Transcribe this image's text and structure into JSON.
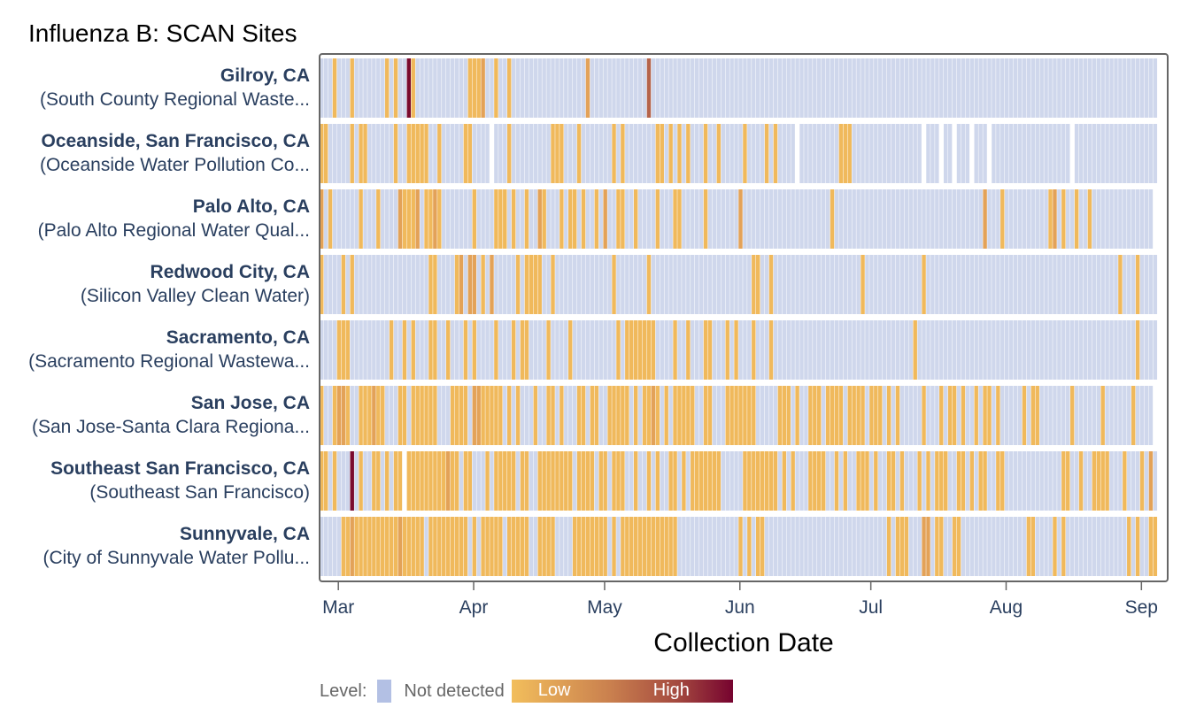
{
  "title": "Influenza B: SCAN Sites",
  "chart_data": {
    "type": "heatmap",
    "title": "Influenza B: SCAN Sites",
    "xlabel": "Collection Date",
    "x_start_date": "2024-02-26",
    "num_days": 192,
    "x_ticks": [
      {
        "label": "Mar",
        "day": 4
      },
      {
        "label": "Apr",
        "day": 35
      },
      {
        "label": "May",
        "day": 65
      },
      {
        "label": "Jun",
        "day": 96
      },
      {
        "label": "Jul",
        "day": 126
      },
      {
        "label": "Aug",
        "day": 157
      },
      {
        "label": "Sep",
        "day": 188
      }
    ],
    "levels": {
      "0": "Not detected",
      "1": "Low",
      "4": "High"
    },
    "colors": {
      "0": "#cfd7ec",
      "1": "#f0b95c",
      "2": "#e3a258",
      "3": "#b5634a",
      "4": "#7a0b2e"
    },
    "legend": {
      "prefix": "Level:",
      "not_detected": "Not detected",
      "low": "Low",
      "high": "High"
    },
    "sites": [
      {
        "name": "Gilroy, CA",
        "facility": "(South County Regional Waste...",
        "last_day": 191,
        "missing": [],
        "low": [
          3,
          7,
          15,
          17,
          21,
          34,
          35,
          36,
          40,
          43
        ],
        "mid": [
          37,
          61
        ],
        "midhigh": [
          75
        ],
        "high": [
          20
        ]
      },
      {
        "name": "Oceanside, San Francisco, CA",
        "facility": "(Oceanside Water Pollution Co...",
        "last_day": 191,
        "missing": [
          39,
          109,
          138,
          142,
          145,
          149,
          153,
          172
        ],
        "low": [
          0,
          1,
          7,
          9,
          10,
          17,
          20,
          21,
          22,
          23,
          24,
          27,
          33,
          34,
          43,
          53,
          54,
          55,
          59,
          67,
          69,
          77,
          78,
          80,
          82,
          84,
          88,
          91,
          97,
          102,
          104,
          119,
          120,
          121
        ],
        "mid": [],
        "midhigh": [],
        "high": []
      },
      {
        "name": "Palo Alto, CA",
        "facility": "(Palo Alto Regional Water Qual...",
        "last_day": 190,
        "missing": [],
        "low": [
          2,
          9,
          13,
          19,
          20,
          21,
          24,
          25,
          27,
          35,
          40,
          41,
          42,
          44,
          47,
          51,
          55,
          57,
          58,
          60,
          63,
          68,
          69,
          72,
          77,
          81,
          82,
          88,
          117,
          156,
          167,
          170,
          173,
          176
        ],
        "mid": [
          0,
          18,
          22,
          26,
          50,
          65,
          96,
          152,
          168
        ],
        "midhigh": [],
        "high": []
      },
      {
        "name": "Redwood City, CA",
        "facility": "(Silicon Valley Clean Water)",
        "last_day": 191,
        "missing": [],
        "low": [
          0,
          5,
          7,
          25,
          26,
          31,
          37,
          45,
          47,
          48,
          49,
          50,
          53,
          67,
          75,
          99,
          100,
          103,
          124,
          138,
          183,
          187
        ],
        "mid": [
          32,
          34,
          35,
          39
        ],
        "midhigh": [],
        "high": []
      },
      {
        "name": "Sacramento, CA",
        "facility": "(Sacramento Regional Wastewa...",
        "last_day": 191,
        "missing": [],
        "low": [
          4,
          5,
          6,
          16,
          19,
          21,
          25,
          26,
          29,
          33,
          35,
          40,
          44,
          46,
          47,
          52,
          57,
          68,
          70,
          71,
          72,
          73,
          74,
          75,
          76,
          81,
          84,
          88,
          89,
          93,
          95,
          99,
          103,
          136,
          187
        ],
        "mid": [],
        "midhigh": [],
        "high": []
      },
      {
        "name": "San Jose, CA",
        "facility": "(San Jose-Santa Clara Regiona...",
        "last_day": 190,
        "missing": [],
        "low": [
          0,
          3,
          6,
          9,
          10,
          11,
          13,
          14,
          18,
          19,
          21,
          22,
          23,
          24,
          25,
          26,
          30,
          31,
          32,
          33,
          37,
          38,
          39,
          40,
          41,
          43,
          45,
          49,
          52,
          53,
          55,
          59,
          60,
          62,
          63,
          66,
          67,
          68,
          69,
          70,
          72,
          74,
          75,
          77,
          79,
          81,
          82,
          83,
          84,
          85,
          88,
          89,
          93,
          94,
          95,
          96,
          97,
          98,
          99,
          105,
          106,
          107,
          109,
          112,
          113,
          114,
          116,
          117,
          118,
          119,
          121,
          122,
          123,
          124,
          126,
          127,
          128,
          130,
          132,
          138,
          142,
          144,
          145,
          147,
          150,
          152,
          153,
          155,
          161,
          163,
          164,
          172,
          179,
          186
        ],
        "mid": [
          4,
          5,
          12,
          35,
          36,
          76
        ],
        "midhigh": [],
        "high": []
      },
      {
        "name": "Southeast San Francisco, CA",
        "facility": "(Southeast San Francisco)",
        "last_day": 191,
        "missing": [
          19
        ],
        "low": [
          0,
          1,
          3,
          9,
          12,
          13,
          15,
          17,
          18,
          20,
          21,
          22,
          23,
          24,
          25,
          26,
          27,
          28,
          30,
          31,
          33,
          34,
          38,
          40,
          41,
          42,
          43,
          44,
          46,
          47,
          50,
          51,
          52,
          53,
          54,
          55,
          56,
          57,
          59,
          60,
          61,
          62,
          64,
          65,
          67,
          68,
          69,
          72,
          75,
          77,
          80,
          81,
          83,
          85,
          86,
          87,
          88,
          89,
          90,
          91,
          97,
          98,
          99,
          100,
          101,
          102,
          103,
          104,
          106,
          108,
          112,
          113,
          114,
          115,
          118,
          120,
          123,
          124,
          125,
          127,
          130,
          131,
          133,
          137,
          139,
          141,
          142,
          143,
          146,
          147,
          149,
          151,
          152,
          155,
          156,
          170,
          171,
          174,
          177,
          178,
          179,
          180,
          184,
          188
        ],
        "mid": [
          29,
          190
        ],
        "midhigh": [],
        "high": [
          7
        ]
      },
      {
        "name": "Sunnyvale, CA",
        "facility": "(City of Sunnyvale Water Pollu...",
        "last_day": 191,
        "missing": [],
        "low": [
          5,
          6,
          8,
          9,
          10,
          11,
          12,
          13,
          14,
          15,
          16,
          17,
          19,
          20,
          21,
          22,
          23,
          25,
          26,
          27,
          28,
          29,
          30,
          31,
          32,
          33,
          35,
          37,
          38,
          39,
          40,
          41,
          43,
          44,
          45,
          46,
          47,
          50,
          51,
          52,
          53,
          58,
          59,
          60,
          61,
          62,
          63,
          64,
          65,
          67,
          69,
          70,
          71,
          72,
          73,
          74,
          75,
          76,
          77,
          78,
          79,
          80,
          81,
          96,
          98,
          100,
          101,
          130,
          132,
          133,
          134,
          141,
          142,
          145,
          146,
          162,
          163,
          168,
          170,
          185,
          187,
          190,
          191
        ],
        "mid": [
          7,
          18,
          139,
          138
        ],
        "midhigh": [],
        "high": []
      }
    ]
  }
}
